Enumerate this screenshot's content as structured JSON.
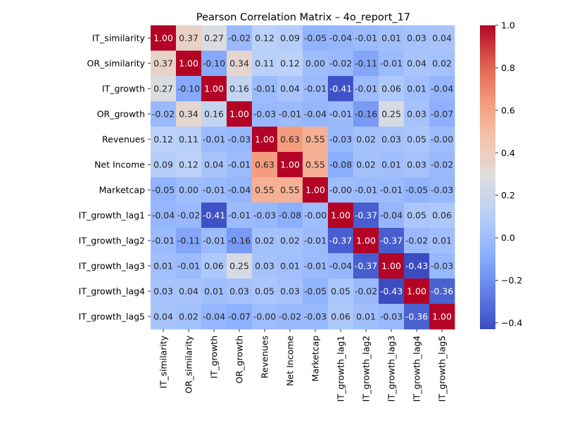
{
  "chart_data": {
    "type": "heatmap",
    "title": "Pearson Correlation Matrix – 4o_report_17",
    "xlabel": "",
    "ylabel": "",
    "labels": [
      "IT_similarity",
      "OR_similarity",
      "IT_growth",
      "OR_growth",
      "Revenues",
      "Net Income",
      "Marketcap",
      "IT_growth_lag1",
      "IT_growth_lag2",
      "IT_growth_lag3",
      "IT_growth_lag4",
      "IT_growth_lag5"
    ],
    "matrix": [
      [
        1.0,
        0.37,
        0.27,
        -0.02,
        0.12,
        0.09,
        -0.05,
        -0.04,
        -0.01,
        0.01,
        0.03,
        0.04
      ],
      [
        0.37,
        1.0,
        -0.1,
        0.34,
        0.11,
        0.12,
        0.0,
        -0.02,
        -0.11,
        -0.01,
        0.04,
        0.02
      ],
      [
        0.27,
        -0.1,
        1.0,
        0.16,
        -0.01,
        0.04,
        -0.01,
        -0.41,
        -0.01,
        0.06,
        0.01,
        -0.04
      ],
      [
        -0.02,
        0.34,
        0.16,
        1.0,
        -0.03,
        -0.01,
        -0.04,
        -0.01,
        -0.16,
        0.25,
        0.03,
        -0.07
      ],
      [
        0.12,
        0.11,
        -0.01,
        -0.03,
        1.0,
        0.63,
        0.55,
        -0.03,
        0.02,
        0.03,
        0.05,
        -0.0
      ],
      [
        0.09,
        0.12,
        0.04,
        -0.01,
        0.63,
        1.0,
        0.55,
        -0.08,
        0.02,
        0.01,
        0.03,
        -0.02
      ],
      [
        -0.05,
        0.0,
        -0.01,
        -0.04,
        0.55,
        0.55,
        1.0,
        -0.0,
        -0.01,
        -0.01,
        -0.05,
        -0.03
      ],
      [
        -0.04,
        -0.02,
        -0.41,
        -0.01,
        -0.03,
        -0.08,
        -0.0,
        1.0,
        -0.37,
        -0.04,
        0.05,
        0.06
      ],
      [
        -0.01,
        -0.11,
        -0.01,
        -0.16,
        0.02,
        0.02,
        -0.01,
        -0.37,
        1.0,
        -0.37,
        -0.02,
        0.01
      ],
      [
        0.01,
        -0.01,
        0.06,
        0.25,
        0.03,
        0.01,
        -0.01,
        -0.04,
        -0.37,
        1.0,
        -0.43,
        -0.03
      ],
      [
        0.03,
        0.04,
        0.01,
        0.03,
        0.05,
        0.03,
        -0.05,
        0.05,
        -0.02,
        -0.43,
        1.0,
        -0.36
      ],
      [
        0.04,
        0.02,
        -0.04,
        -0.07,
        -0.0,
        -0.02,
        -0.03,
        0.06,
        0.01,
        -0.03,
        -0.36,
        1.0
      ]
    ],
    "colorbar": {
      "colormap": "coolwarm",
      "range": [
        -0.43,
        1.0
      ],
      "ticks": [
        -0.4,
        -0.2,
        0.0,
        0.2,
        0.4,
        0.6,
        0.8,
        1.0
      ],
      "tick_labels": [
        "−0.4",
        "−0.2",
        "0.0",
        "0.2",
        "0.4",
        "0.6",
        "0.8",
        "1.0"
      ]
    },
    "annotation_format": "2 decimals",
    "grid": false
  }
}
